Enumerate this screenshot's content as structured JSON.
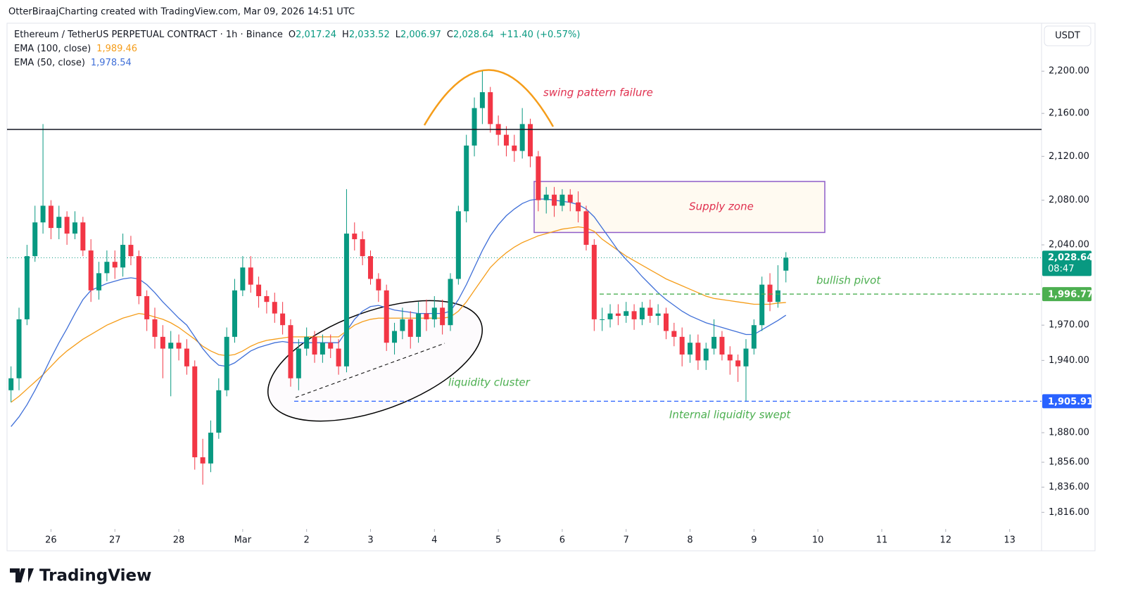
{
  "credit": "OtterBiraajCharting created with TradingView.com, Mar 09, 2026 14:51 UTC",
  "brand": "TradingView",
  "chart_data": {
    "type": "candlestick",
    "symbol": "Ethereum / TetherUS PERPETUAL CONTRACT · 1h · Binance",
    "ohlc_letters": [
      "O",
      "H",
      "L",
      "C"
    ],
    "ohlc_labels": [
      "2,017.24",
      "2,033.52",
      "2,006.97",
      "2,028.64"
    ],
    "change_label": "+11.40 (+0.57%)",
    "currency": "USDT",
    "countdown": "08:47",
    "colors": {
      "up": "#089981",
      "down": "#f23645"
    },
    "open": [
      1915,
      1925,
      1975,
      2030,
      2060,
      2075,
      2055,
      2065,
      2050,
      2060,
      2035,
      2000,
      2015,
      2025,
      2020,
      2040,
      2030,
      1995,
      1975,
      1960,
      1950,
      1955,
      1950,
      1935,
      1860,
      1855,
      1880,
      1915,
      1960,
      2000,
      2020,
      2005,
      1995,
      1990,
      1980,
      1970,
      1925,
      1950,
      1960,
      1945,
      1955,
      1950,
      1935,
      2050,
      2045,
      2030,
      2010,
      2000,
      1955,
      1965,
      1975,
      1960,
      1980,
      1975,
      1985,
      1970,
      2010,
      2070,
      2130,
      2165,
      2180,
      2150,
      2140,
      2130,
      2125,
      2150,
      2120,
      2080,
      2085,
      2075,
      2085,
      2078,
      2070,
      2040,
      1975,
      1975,
      1980,
      1978,
      1982,
      1975,
      1985,
      1978,
      1980,
      1965,
      1960,
      1945,
      1955,
      1940,
      1950,
      1960,
      1945,
      1940,
      1935,
      1950,
      1970,
      2005,
      1990,
      2017.24
    ],
    "high": [
      1935,
      1985,
      2040,
      2075,
      2150,
      2080,
      2075,
      2070,
      2070,
      2065,
      2045,
      2025,
      2035,
      2035,
      2050,
      2048,
      2035,
      2000,
      1985,
      1970,
      1965,
      1962,
      1958,
      1940,
      1875,
      1890,
      1925,
      1968,
      2010,
      2030,
      2030,
      2012,
      2000,
      1998,
      1990,
      1975,
      1958,
      1968,
      1965,
      1962,
      1962,
      1958,
      2090,
      2060,
      2052,
      2035,
      2015,
      2005,
      1972,
      1985,
      1982,
      1990,
      1992,
      1995,
      1992,
      2015,
      2075,
      2140,
      2175,
      2200,
      2185,
      2158,
      2148,
      2140,
      2165,
      2155,
      2125,
      2092,
      2092,
      2090,
      2090,
      2088,
      2075,
      2045,
      1985,
      1988,
      1988,
      1990,
      1988,
      1990,
      1992,
      1988,
      1985,
      1972,
      1968,
      1962,
      1962,
      1955,
      1975,
      1965,
      1952,
      1945,
      1958,
      1975,
      2012,
      2015,
      2022,
      2033.52
    ],
    "low": [
      1905,
      1915,
      1970,
      2025,
      2050,
      2045,
      2045,
      2040,
      2045,
      2030,
      1990,
      1992,
      2008,
      2010,
      2012,
      2022,
      1988,
      1965,
      1950,
      1925,
      1910,
      1940,
      1928,
      1850,
      1838,
      1848,
      1875,
      1910,
      1955,
      1995,
      1998,
      1985,
      1980,
      1972,
      1962,
      1918,
      1915,
      1944,
      1938,
      1938,
      1942,
      1928,
      1930,
      2035,
      2022,
      2005,
      1990,
      1948,
      1945,
      1958,
      1950,
      1955,
      1965,
      1968,
      1962,
      1965,
      2005,
      2060,
      2120,
      2150,
      2142,
      2130,
      2120,
      2115,
      2118,
      2110,
      2070,
      2068,
      2065,
      2070,
      2070,
      2060,
      2035,
      1965,
      1965,
      1968,
      1970,
      1972,
      1966,
      1970,
      1972,
      1970,
      1958,
      1952,
      1935,
      1938,
      1932,
      1932,
      1945,
      1940,
      1928,
      1922,
      1906,
      1945,
      1965,
      1982,
      1985,
      2006.97
    ],
    "close": [
      1925,
      1975,
      2030,
      2060,
      2075,
      2055,
      2065,
      2050,
      2060,
      2035,
      2000,
      2015,
      2025,
      2020,
      2040,
      2030,
      1995,
      1975,
      1960,
      1950,
      1955,
      1950,
      1935,
      1860,
      1855,
      1880,
      1915,
      1960,
      2000,
      2020,
      2005,
      1995,
      1990,
      1980,
      1970,
      1925,
      1950,
      1960,
      1945,
      1955,
      1950,
      1935,
      2050,
      2045,
      2030,
      2010,
      2000,
      1955,
      1965,
      1975,
      1960,
      1980,
      1975,
      1985,
      1970,
      2010,
      2070,
      2130,
      2165,
      2180,
      2150,
      2140,
      2130,
      2125,
      2150,
      2120,
      2080,
      2085,
      2075,
      2085,
      2078,
      2070,
      2040,
      1975,
      1975,
      1980,
      1978,
      1982,
      1975,
      1985,
      1978,
      1980,
      1965,
      1960,
      1945,
      1955,
      1940,
      1950,
      1960,
      1945,
      1940,
      1935,
      1950,
      1970,
      2005,
      1990,
      2000,
      2028.64
    ],
    "series": [
      {
        "name": "EMA (100, close)",
        "color": "#f59d1a",
        "value_label": "1,989.46",
        "values": [
          1905,
          1910,
          1916,
          1922,
          1928,
          1935,
          1942,
          1948,
          1953,
          1958,
          1962,
          1966,
          1970,
          1973,
          1976,
          1978,
          1980,
          1979,
          1977,
          1975,
          1972,
          1968,
          1963,
          1958,
          1952,
          1948,
          1945,
          1944,
          1945,
          1948,
          1952,
          1955,
          1957,
          1958,
          1959,
          1960,
          1960,
          1960,
          1960,
          1960,
          1960,
          1960,
          1965,
          1970,
          1973,
          1975,
          1976,
          1976,
          1976,
          1976,
          1976,
          1976,
          1976,
          1976,
          1976,
          1977,
          1982,
          1990,
          2000,
          2010,
          2020,
          2027,
          2033,
          2038,
          2042,
          2045,
          2048,
          2050,
          2052,
          2054,
          2055,
          2056,
          2055,
          2052,
          2045,
          2040,
          2035,
          2030,
          2026,
          2022,
          2018,
          2014,
          2010,
          2007,
          2004,
          2001,
          1998,
          1995,
          1993,
          1992,
          1991,
          1990,
          1989,
          1988,
          1988,
          1988,
          1989,
          1989.46
        ]
      },
      {
        "name": "EMA (50, close)",
        "color": "#3f6fd8",
        "value_label": "1,978.54",
        "values": [
          1885,
          1893,
          1903,
          1915,
          1928,
          1942,
          1955,
          1967,
          1980,
          1992,
          2000,
          2003,
          2006,
          2008,
          2010,
          2011,
          2010,
          2005,
          1998,
          1990,
          1983,
          1976,
          1970,
          1960,
          1950,
          1942,
          1936,
          1935,
          1938,
          1943,
          1948,
          1951,
          1953,
          1955,
          1956,
          1955,
          1955,
          1955,
          1955,
          1955,
          1955,
          1955,
          1965,
          1975,
          1982,
          1986,
          1987,
          1985,
          1983,
          1982,
          1981,
          1980,
          1980,
          1980,
          1980,
          1982,
          1992,
          2005,
          2020,
          2035,
          2048,
          2058,
          2066,
          2072,
          2077,
          2080,
          2081,
          2081,
          2080,
          2079,
          2078,
          2076,
          2072,
          2065,
          2055,
          2045,
          2035,
          2027,
          2020,
          2012,
          2005,
          1998,
          1992,
          1987,
          1982,
          1978,
          1975,
          1972,
          1970,
          1968,
          1966,
          1964,
          1962,
          1962,
          1966,
          1970,
          1974,
          1978.54
        ]
      }
    ],
    "log_scale": true,
    "grid": false,
    "ylim": [
      1804,
      2245
    ],
    "yticks": [
      {
        "value": 2200,
        "label": "2,200.00"
      },
      {
        "value": 2160,
        "label": "2,160.00"
      },
      {
        "value": 2120,
        "label": "2,120.00"
      },
      {
        "value": 2080,
        "label": "2,080.00"
      },
      {
        "value": 2040,
        "label": "2,040.00"
      },
      {
        "value": 1970,
        "label": "1,970.00"
      },
      {
        "value": 1940,
        "label": "1,940.00"
      },
      {
        "value": 1880,
        "label": "1,880.00"
      },
      {
        "value": 1856,
        "label": "1,856.00"
      },
      {
        "value": 1836,
        "label": "1,836.00"
      },
      {
        "value": 1816,
        "label": "1,816.00"
      }
    ],
    "xlim": [
      -0.5,
      129
    ],
    "xticks": [
      {
        "value": 5,
        "label": "26"
      },
      {
        "value": 13,
        "label": "27"
      },
      {
        "value": 21,
        "label": "28"
      },
      {
        "value": 29,
        "label": "Mar"
      },
      {
        "value": 37,
        "label": "2"
      },
      {
        "value": 45,
        "label": "3"
      },
      {
        "value": 53,
        "label": "4"
      },
      {
        "value": 61,
        "label": "5"
      },
      {
        "value": 69,
        "label": "6"
      },
      {
        "value": 77,
        "label": "7"
      },
      {
        "value": 85,
        "label": "8"
      },
      {
        "value": 93,
        "label": "9"
      },
      {
        "value": 101,
        "label": "10"
      },
      {
        "value": 109,
        "label": "11"
      },
      {
        "value": 117,
        "label": "12"
      },
      {
        "value": 125,
        "label": "13"
      }
    ],
    "levels": [
      {
        "value": 2145,
        "color": "#131722",
        "style": "solid"
      },
      {
        "value": 1996.77,
        "label": "1,996.77",
        "color": "#4caf50",
        "style": "dashed"
      },
      {
        "value": 1905.91,
        "label": "1,905.91",
        "color": "#2962ff",
        "style": "dashed"
      }
    ],
    "supply_zone": {
      "label": "Supply zone",
      "range": [
        2051,
        2097
      ]
    },
    "annotations": [
      "swing pattern failure",
      "bullish pivot",
      "liquidity cluster",
      "Internal liquidity swept"
    ]
  }
}
